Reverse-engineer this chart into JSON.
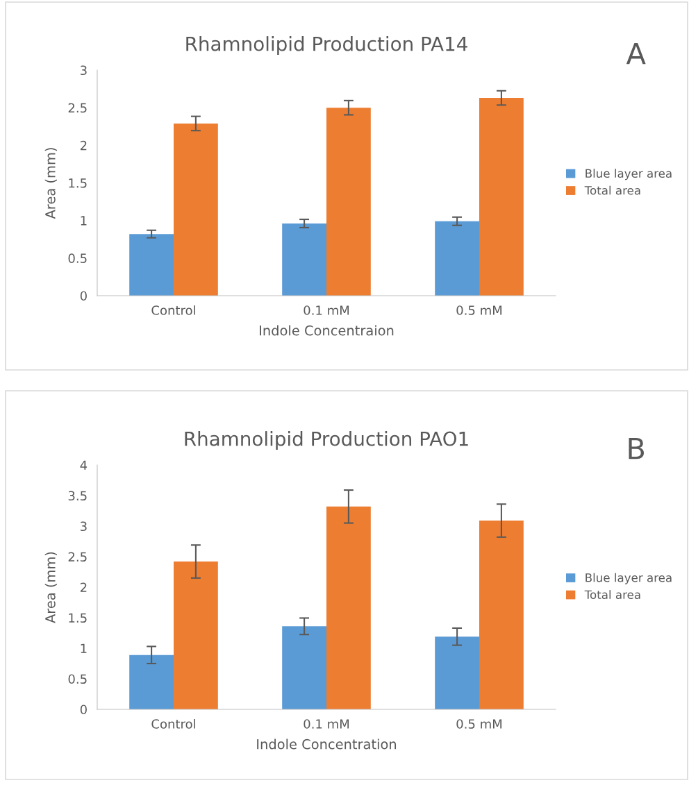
{
  "chart_data": [
    {
      "type": "bar",
      "title": "Rhamnolipid Production PA14",
      "xlabel": "Indole Concentraion",
      "ylabel": "Area (mm)",
      "annotations": [
        "A"
      ],
      "categories": [
        "Control",
        "0.1 mM",
        "0.5 mM"
      ],
      "series": [
        {
          "name": "Blue layer area",
          "color": "#5b9bd5",
          "values": [
            0.82,
            0.96,
            0.99
          ],
          "errors": [
            0.05,
            0.055,
            0.055
          ]
        },
        {
          "name": "Total area",
          "color": "#ed7d31",
          "values": [
            2.29,
            2.5,
            2.63
          ],
          "errors": [
            0.095,
            0.095,
            0.095
          ]
        }
      ],
      "ylim": [
        0,
        3
      ],
      "yticks": [
        0,
        0.5,
        1,
        1.5,
        2,
        2.5,
        3
      ],
      "grid": false,
      "legend": "right"
    },
    {
      "type": "bar",
      "title": "Rhamnolipid Production PAO1",
      "xlabel": "Indole Concentration",
      "ylabel": "Area (mm)",
      "annotations": [
        "B"
      ],
      "categories": [
        "Control",
        "0.1 mM",
        "0.5 mM"
      ],
      "series": [
        {
          "name": "Blue layer area",
          "color": "#5b9bd5",
          "values": [
            0.89,
            1.36,
            1.19
          ],
          "errors": [
            0.14,
            0.135,
            0.14
          ]
        },
        {
          "name": "Total area",
          "color": "#ed7d31",
          "values": [
            2.42,
            3.32,
            3.09
          ],
          "errors": [
            0.27,
            0.27,
            0.27
          ]
        }
      ],
      "ylim": [
        0,
        4
      ],
      "yticks": [
        0,
        0.5,
        1,
        1.5,
        2,
        2.5,
        3,
        3.5,
        4
      ],
      "grid": false,
      "legend": "right"
    }
  ]
}
